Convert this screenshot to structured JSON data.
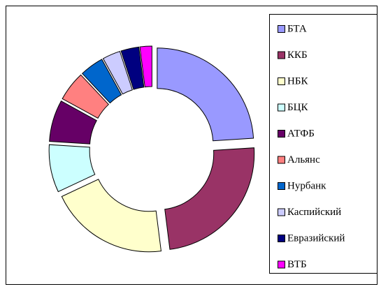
{
  "chart_data": {
    "type": "donut",
    "categories": [
      "БТА",
      "ККБ",
      "НБК",
      "БЦК",
      "АТФБ",
      "Альянс",
      "Нурбанк",
      "Каспийский",
      "Евразийский",
      "ВТБ"
    ],
    "values": [
      24,
      24,
      20,
      8,
      7,
      5,
      4,
      3,
      3,
      2
    ],
    "colors": [
      "#9999ff",
      "#993366",
      "#ffffcc",
      "#ccffff",
      "#660066",
      "#ff8080",
      "#0066cc",
      "#ccccff",
      "#000080",
      "#ff00ff"
    ],
    "legend": "right"
  }
}
